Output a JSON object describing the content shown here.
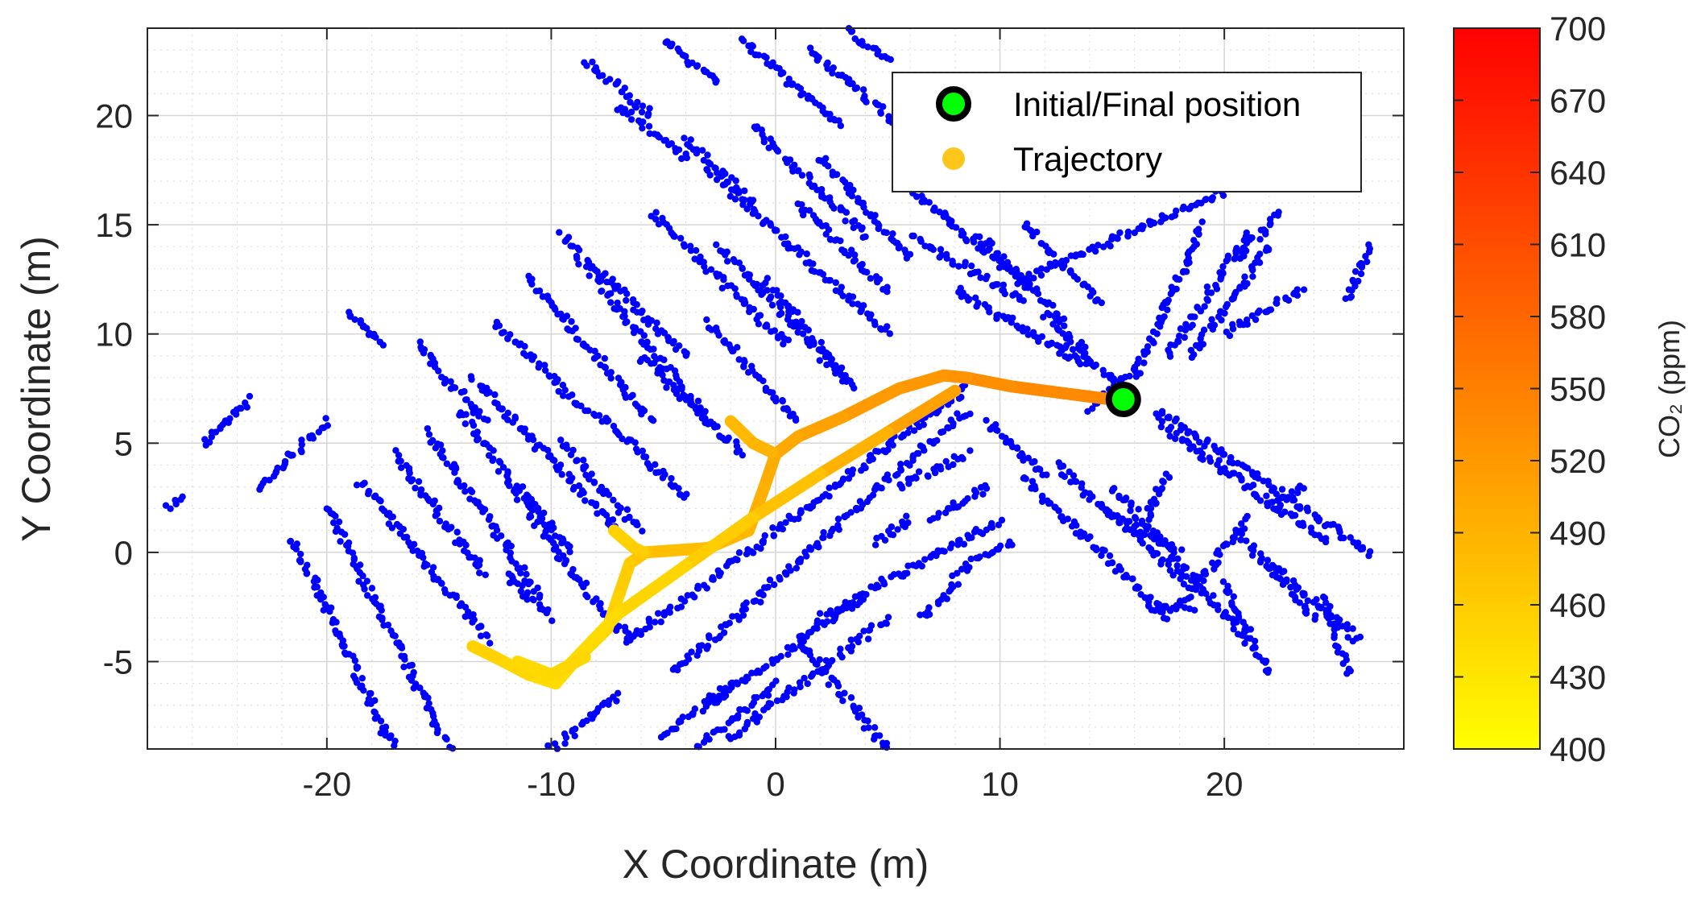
{
  "chart_data": {
    "type": "scatter",
    "title": "",
    "xlabel": "X Coordinate (m)",
    "ylabel": "Y Coordinate (m)",
    "xlim": [
      -28,
      28
    ],
    "ylim": [
      -9,
      24
    ],
    "xticks": [
      -20,
      -10,
      0,
      10,
      20
    ],
    "yticks": [
      -5,
      0,
      5,
      10,
      15,
      20
    ],
    "xticklabels": [
      "-20",
      "-10",
      "0",
      "10",
      "20"
    ],
    "yticklabels": [
      "-5",
      "0",
      "5",
      "10",
      "15",
      "20"
    ],
    "grid": true,
    "minor_grid": true,
    "legend_position": "top-right",
    "series": [
      {
        "name": "Initial/Final position",
        "color": "#00ff00",
        "edge_color": "#000000",
        "points": [
          [
            15.5,
            7.0
          ]
        ]
      },
      {
        "name": "Trajectory",
        "color": "#ffc61a",
        "color_scale": "co2",
        "segments": [
          {
            "points": [
              [
                15.0,
                7.0
              ],
              [
                13.5,
                7.2
              ],
              [
                10.5,
                7.6
              ],
              [
                8.5,
                8.0
              ],
              [
                7.5,
                8.1
              ],
              [
                5.5,
                7.5
              ],
              [
                3.0,
                6.2
              ],
              [
                1.0,
                5.3
              ],
              [
                0.0,
                4.5
              ],
              [
                -0.5,
                3.0
              ],
              [
                -1.2,
                1.0
              ],
              [
                -3.0,
                0.2
              ],
              [
                -5.8,
                0.0
              ],
              [
                -6.5,
                -0.5
              ],
              [
                -7.0,
                -2.0
              ],
              [
                -7.5,
                -3.5
              ],
              [
                -8.8,
                -4.8
              ],
              [
                -9.8,
                -6.0
              ],
              [
                -11.0,
                -5.6
              ],
              [
                -12.5,
                -4.8
              ],
              [
                -13.5,
                -4.3
              ]
            ],
            "co2": [
              540,
              540,
              535,
              530,
              525,
              520,
              515,
              505,
              500,
              495,
              490,
              480,
              470,
              465,
              455,
              450,
              445,
              440,
              445,
              450,
              455
            ]
          },
          {
            "points": [
              [
                8.0,
                7.4
              ],
              [
                5.0,
                5.5
              ],
              [
                2.0,
                3.6
              ],
              [
                -1.0,
                1.6
              ],
              [
                -4.0,
                -0.6
              ],
              [
                -7.0,
                -2.8
              ],
              [
                -9.8,
                -5.8
              ]
            ],
            "co2": [
              520,
              500,
              480,
              465,
              455,
              445,
              440
            ]
          },
          {
            "points": [
              [
                -7.2,
                1.0
              ],
              [
                -6.3,
                0.2
              ],
              [
                -5.9,
                0.0
              ]
            ],
            "co2": [
              450,
              455,
              460
            ]
          },
          {
            "points": [
              [
                -2.0,
                6.0
              ],
              [
                -1.0,
                5.0
              ],
              [
                -0.2,
                4.6
              ]
            ],
            "co2": [
              480,
              485,
              490
            ]
          },
          {
            "points": [
              [
                -11.5,
                -5.0
              ],
              [
                -10.0,
                -5.6
              ],
              [
                -8.5,
                -4.8
              ]
            ],
            "co2": [
              445,
              445,
              450
            ]
          }
        ]
      }
    ],
    "obstacles_series": {
      "color": "#0000ff",
      "description_points": "lidar map",
      "segments": [
        [
          [
            -27.0,
            2.0
          ],
          [
            -26.5,
            2.5
          ]
        ],
        [
          [
            -25.5,
            5.0
          ],
          [
            -23.5,
            7.0
          ]
        ],
        [
          [
            -23.0,
            3.0
          ],
          [
            -20.0,
            6.0
          ]
        ],
        [
          [
            -21.5,
            0.5
          ],
          [
            -17.0,
            -9.0
          ]
        ],
        [
          [
            -20.0,
            2.0
          ],
          [
            -14.5,
            -9.0
          ]
        ],
        [
          [
            -18.5,
            3.2
          ],
          [
            -12.8,
            -4.0
          ]
        ],
        [
          [
            -17.0,
            4.5
          ],
          [
            -13.0,
            -1.0
          ]
        ],
        [
          [
            -15.5,
            5.5
          ],
          [
            -10.5,
            -2.0
          ]
        ],
        [
          [
            -14.0,
            6.5
          ],
          [
            -9.0,
            -1.0
          ]
        ],
        [
          [
            -13.5,
            8.0
          ],
          [
            -7.0,
            1.0
          ]
        ],
        [
          [
            -16.0,
            9.5
          ],
          [
            -13.0,
            6.0
          ]
        ],
        [
          [
            -19.0,
            11.0
          ],
          [
            -17.5,
            9.5
          ]
        ],
        [
          [
            -12.5,
            10.5
          ],
          [
            -8.5,
            6.5
          ]
        ],
        [
          [
            -11.0,
            12.5
          ],
          [
            -5.5,
            6.0
          ]
        ],
        [
          [
            -9.5,
            14.5
          ],
          [
            -3.0,
            6.0
          ]
        ],
        [
          [
            -8.0,
            13.0
          ],
          [
            -4.0,
            9.0
          ]
        ],
        [
          [
            -5.5,
            15.5
          ],
          [
            0.5,
            9.5
          ]
        ],
        [
          [
            -3.0,
            17.5
          ],
          [
            5.0,
            10.0
          ]
        ],
        [
          [
            -1.0,
            19.5
          ],
          [
            4.0,
            14.5
          ]
        ],
        [
          [
            -4.0,
            19.0
          ],
          [
            -1.0,
            16.0
          ]
        ],
        [
          [
            -7.0,
            20.5
          ],
          [
            -4.0,
            18.0
          ]
        ],
        [
          [
            -8.5,
            22.5
          ],
          [
            -5.5,
            20.0
          ]
        ],
        [
          [
            -5.0,
            23.5
          ],
          [
            -2.5,
            21.5
          ]
        ],
        [
          [
            -1.5,
            23.5
          ],
          [
            3.0,
            19.5
          ]
        ],
        [
          [
            1.5,
            23.0
          ],
          [
            5.5,
            19.5
          ]
        ],
        [
          [
            3.0,
            24.0
          ],
          [
            5.0,
            22.5
          ]
        ],
        [
          [
            2.0,
            18.0
          ],
          [
            6.0,
            13.5
          ]
        ],
        [
          [
            1.0,
            16.0
          ],
          [
            5.0,
            12.0
          ]
        ],
        [
          [
            -2.5,
            14.0
          ],
          [
            3.0,
            8.0
          ]
        ],
        [
          [
            -0.5,
            12.5
          ],
          [
            3.5,
            7.5
          ]
        ],
        [
          [
            -3.0,
            10.5
          ],
          [
            1.0,
            6.0
          ]
        ],
        [
          [
            -6.0,
            9.0
          ],
          [
            -1.5,
            4.5
          ]
        ],
        [
          [
            -8.0,
            6.5
          ],
          [
            -4.0,
            2.5
          ]
        ],
        [
          [
            -9.5,
            5.0
          ],
          [
            -6.0,
            1.0
          ]
        ],
        [
          [
            -11.5,
            3.0
          ],
          [
            -9.0,
            0.0
          ]
        ],
        [
          [
            -12.0,
            -1.0
          ],
          [
            -10.0,
            -3.0
          ]
        ],
        [
          [
            -9.0,
            -1.0
          ],
          [
            -6.5,
            -4.0
          ]
        ],
        [
          [
            5.5,
            17.0
          ],
          [
            11.5,
            12.0
          ]
        ],
        [
          [
            6.0,
            14.5
          ],
          [
            11.0,
            11.5
          ]
        ],
        [
          [
            9.0,
            14.5
          ],
          [
            13.0,
            10.5
          ]
        ],
        [
          [
            8.0,
            12.0
          ],
          [
            14.0,
            8.5
          ]
        ],
        [
          [
            11.0,
            15.0
          ],
          [
            14.5,
            11.5
          ]
        ],
        [
          [
            -6.5,
            -4.0
          ],
          [
            8.5,
            7.5
          ]
        ],
        [
          [
            -4.5,
            -5.5
          ],
          [
            8.5,
            6.5
          ]
        ],
        [
          [
            -5.0,
            -8.5
          ],
          [
            -2.0,
            -6.0
          ]
        ],
        [
          [
            -3.0,
            -7.0
          ],
          [
            4.0,
            -2.0
          ]
        ],
        [
          [
            -2.0,
            -8.5
          ],
          [
            5.0,
            -3.0
          ]
        ],
        [
          [
            -10.0,
            -9.0
          ],
          [
            -7.0,
            -6.5
          ]
        ],
        [
          [
            1.0,
            -4.0
          ],
          [
            5.0,
            -9.0
          ]
        ],
        [
          [
            2.0,
            -3.0
          ],
          [
            10.0,
            1.5
          ]
        ],
        [
          [
            -3.5,
            -9.0
          ],
          [
            0.0,
            -6.0
          ]
        ],
        [
          [
            14.0,
            6.5
          ],
          [
            16.0,
            8.5
          ]
        ],
        [
          [
            13.0,
            9.5
          ],
          [
            15.5,
            7.5
          ]
        ],
        [
          [
            12.0,
            11.0
          ],
          [
            14.0,
            9.0
          ]
        ],
        [
          [
            16.0,
            8.0
          ],
          [
            19.0,
            15.0
          ]
        ],
        [
          [
            17.5,
            9.0
          ],
          [
            21.0,
            14.5
          ]
        ],
        [
          [
            18.5,
            9.0
          ],
          [
            22.0,
            14.0
          ]
        ],
        [
          [
            20.0,
            10.0
          ],
          [
            23.5,
            12.0
          ]
        ],
        [
          [
            17.0,
            6.5
          ],
          [
            26.5,
            0.0
          ]
        ],
        [
          [
            17.0,
            6.0
          ],
          [
            24.5,
            0.5
          ]
        ],
        [
          [
            11.0,
            3.5
          ],
          [
            17.5,
            -3.0
          ]
        ],
        [
          [
            12.5,
            4.0
          ],
          [
            18.5,
            -1.5
          ]
        ],
        [
          [
            15.0,
            3.0
          ],
          [
            21.0,
            -4.0
          ]
        ],
        [
          [
            16.5,
            -2.5
          ],
          [
            18.5,
            -2.5
          ]
        ],
        [
          [
            18.0,
            -2.5
          ],
          [
            21.0,
            1.5
          ]
        ],
        [
          [
            20.5,
            1.0
          ],
          [
            24.0,
            -3.0
          ]
        ],
        [
          [
            22.0,
            -0.5
          ],
          [
            26.0,
            -4.0
          ]
        ],
        [
          [
            20.0,
            -1.5
          ],
          [
            22.0,
            -5.5
          ]
        ],
        [
          [
            24.5,
            -2.0
          ],
          [
            25.5,
            -5.5
          ]
        ],
        [
          [
            14.5,
            2.0
          ],
          [
            18.0,
            0.0
          ]
        ],
        [
          [
            16.5,
            1.5
          ],
          [
            17.5,
            3.5
          ]
        ],
        [
          [
            22.0,
            2.0
          ],
          [
            23.5,
            3.0
          ]
        ],
        [
          [
            11.0,
            12.5
          ],
          [
            20.0,
            16.5
          ]
        ],
        [
          [
            20.5,
            13.5
          ],
          [
            22.5,
            15.5
          ]
        ],
        [
          [
            25.5,
            11.5
          ],
          [
            26.5,
            14.0
          ]
        ],
        [
          [
            5.5,
            3.0
          ],
          [
            8.5,
            4.5
          ]
        ],
        [
          [
            7.0,
            1.5
          ],
          [
            9.5,
            3.0
          ]
        ],
        [
          [
            8.0,
            -1.0
          ],
          [
            10.5,
            0.5
          ]
        ],
        [
          [
            4.5,
            0.5
          ],
          [
            6.0,
            1.5
          ]
        ],
        [
          [
            6.5,
            -3.0
          ],
          [
            8.0,
            -1.5
          ]
        ],
        [
          [
            9.5,
            6.0
          ],
          [
            12.0,
            3.5
          ]
        ]
      ]
    },
    "colorbar": {
      "label": "CO₂ (ppm)",
      "min": 400,
      "max": 700,
      "ticks": [
        "700",
        "670",
        "640",
        "610",
        "580",
        "550",
        "520",
        "490",
        "460",
        "430",
        "400"
      ],
      "colors": [
        "#ffff00",
        "#ff0000"
      ]
    }
  }
}
